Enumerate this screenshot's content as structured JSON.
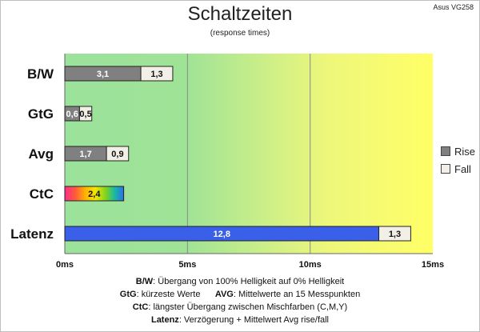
{
  "header": {
    "title": "Schaltzeiten",
    "subtitle": "(response times)",
    "device": "Asus VG258"
  },
  "chart_data": {
    "type": "bar",
    "orientation": "horizontal",
    "stacked": true,
    "categories": [
      "B/W",
      "GtG",
      "Avg",
      "CtC",
      "Latenz"
    ],
    "series": [
      {
        "name": "Rise",
        "values": [
          3.1,
          0.6,
          1.7,
          2.4,
          12.8
        ],
        "color": "#808080"
      },
      {
        "name": "Fall",
        "values": [
          1.3,
          0.5,
          0.9,
          null,
          1.3
        ],
        "color": "#f2efe6"
      }
    ],
    "bar_colors": {
      "CtC": "rainbow-gradient",
      "Latenz": "#3a5fe8"
    },
    "value_labels": [
      [
        "3,1",
        "0,6",
        "1,7",
        "2,4",
        "12,8"
      ],
      [
        "1,3",
        "0,5",
        "0,9",
        "",
        "1,3"
      ]
    ],
    "x_ticks": [
      0,
      5,
      10,
      15
    ],
    "x_tick_labels": [
      "0ms",
      "5ms",
      "10ms",
      "15ms"
    ],
    "xlim": [
      0,
      15
    ],
    "grid": "vertical at 5ms, 10ms",
    "background": "horizontal gradient green to yellow",
    "legend": "right"
  },
  "notes": [
    {
      "label": "B/W",
      "text": ":  Übergang von 100% Helligkeit auf 0% Helligkeit"
    },
    {
      "label": "GtG",
      "text": ": kürzeste  Werte",
      "label2": "AVG",
      "text2": ": Mittelwerte  an 15 Messpunkten"
    },
    {
      "label": "CtC",
      "text": ": längster Übergang  zwischen Mischfarben (C,M,Y)"
    },
    {
      "label": "Latenz",
      "text": ": Verzögerung  + Mittelwert Avg rise/fall"
    }
  ]
}
